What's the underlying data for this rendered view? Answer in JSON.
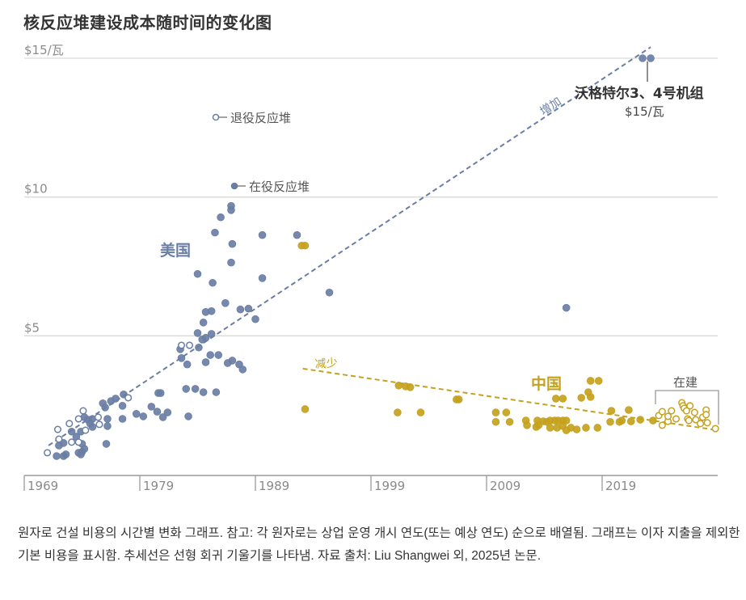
{
  "title": "核反应堆建设成本随时间的变化图",
  "caption": "원자로 건설 비용의 시간별 변화 그래프. 참고: 각 원자로는 상업 운영 개시 연도(또는 예상 연도) 순으로 배열됨. 그래프는 이자 지출을 제외한 기본 비용을 표시함. 추세선은 선형 회귀 기울기를 나타냄. 자료 출처: Liu Shangwei 외, 2025년 논문.",
  "colors": {
    "us": "#6a7ea4",
    "china": "#c4a21e",
    "grid": "#d9d9d9",
    "axis": "#9a9a9a"
  },
  "chart_data": {
    "type": "scatter",
    "xlim": [
      1969,
      2029
    ],
    "ylim": [
      0,
      15
    ],
    "grid": "horizontal",
    "x_ticks": [
      "1969",
      "1979",
      "1989",
      "1999",
      "2009",
      "2019"
    ],
    "y_ticks": [
      {
        "value": 15,
        "label": "$15/瓦"
      },
      {
        "value": 10,
        "label": "$10"
      },
      {
        "value": 5,
        "label": "$5"
      }
    ],
    "legend": {
      "retired": "退役反应堆",
      "operating": "在役反应堆"
    },
    "annotations": {
      "us_label": "美国",
      "china_label": "中国",
      "increase": "增加",
      "decrease": "减少",
      "under_construction": "在建",
      "vogtle_name": "沃格特尔3、4号机组",
      "vogtle_cost": "$15/瓦"
    },
    "series": [
      {
        "name": "美国",
        "status": "operating",
        "color": "#6a7ea4",
        "points": [
          [
            1986.9,
            9.68
          ],
          [
            1986.9,
            9.53
          ],
          [
            1986.0,
            9.27
          ],
          [
            1985.5,
            8.72
          ],
          [
            1989.6,
            8.63
          ],
          [
            1992.6,
            8.63
          ],
          [
            1987.0,
            8.31
          ],
          [
            1986.9,
            7.64
          ],
          [
            1984.0,
            7.23
          ],
          [
            1989.6,
            7.08
          ],
          [
            1985.3,
            6.91
          ],
          [
            1995.4,
            6.56
          ],
          [
            1986.4,
            6.18
          ],
          [
            1987.7,
            5.95
          ],
          [
            1988.4,
            5.98
          ],
          [
            1989.0,
            5.6
          ],
          [
            1984.7,
            5.86
          ],
          [
            1985.2,
            5.89
          ],
          [
            1984.5,
            5.48
          ],
          [
            1984.0,
            5.1
          ],
          [
            1985.2,
            5.07
          ],
          [
            1984.4,
            4.87
          ],
          [
            1984.7,
            4.93
          ],
          [
            1982.5,
            4.52
          ],
          [
            1984.1,
            4.58
          ],
          [
            1985.1,
            4.31
          ],
          [
            1985.8,
            4.31
          ],
          [
            1982.6,
            4.2
          ],
          [
            1983.1,
            3.97
          ],
          [
            1984.7,
            4.05
          ],
          [
            1986.6,
            4.02
          ],
          [
            1987.0,
            4.11
          ],
          [
            1987.6,
            3.97
          ],
          [
            1987.9,
            3.79
          ],
          [
            1983.0,
            3.09
          ],
          [
            1983.8,
            3.09
          ],
          [
            1984.5,
            2.97
          ],
          [
            1985.6,
            2.97
          ],
          [
            1983.2,
            2.1
          ],
          [
            1980.6,
            2.94
          ],
          [
            1980.8,
            2.94
          ],
          [
            1980.0,
            2.45
          ],
          [
            1980.5,
            2.27
          ],
          [
            1981.0,
            2.07
          ],
          [
            1981.4,
            2.24
          ],
          [
            1978.7,
            2.19
          ],
          [
            1979.3,
            2.1
          ],
          [
            1976.9,
            2.74
          ],
          [
            1977.6,
            2.89
          ],
          [
            1977.5,
            2.48
          ],
          [
            1977.5,
            2.01
          ],
          [
            1975.8,
            2.57
          ],
          [
            1976.0,
            2.42
          ],
          [
            1976.5,
            2.65
          ],
          [
            1976.2,
            2.01
          ],
          [
            1976.2,
            1.75
          ],
          [
            1976.1,
            1.11
          ],
          [
            1974.2,
            2.07
          ],
          [
            1974.5,
            1.98
          ],
          [
            1974.9,
            2.01
          ],
          [
            1974.7,
            1.84
          ],
          [
            1974.9,
            1.72
          ],
          [
            1973.1,
            1.55
          ],
          [
            1973.5,
            1.37
          ],
          [
            1973.9,
            1.55
          ],
          [
            1972.0,
            1.05
          ],
          [
            1972.4,
            1.14
          ],
          [
            1974.0,
            1.11
          ],
          [
            1974.2,
            0.93
          ],
          [
            1974.0,
            0.82
          ],
          [
            1971.8,
            0.67
          ],
          [
            1972.4,
            0.67
          ],
          [
            1972.6,
            0.73
          ],
          [
            1973.7,
            0.79
          ],
          [
            1973.9,
            0.73
          ],
          [
            2015.9,
            6.01
          ],
          [
            2022.5,
            15.0
          ],
          [
            2023.2,
            15.0
          ]
        ]
      },
      {
        "name": "美国",
        "status": "retired",
        "color": "#6a7ea4",
        "points": [
          [
            1982.6,
            4.66
          ],
          [
            1983.3,
            4.66
          ],
          [
            1978.0,
            2.77
          ],
          [
            1974.1,
            2.3
          ],
          [
            1973.7,
            2.01
          ],
          [
            1972.9,
            1.84
          ],
          [
            1971.9,
            1.63
          ],
          [
            1972.0,
            1.28
          ],
          [
            1973.1,
            1.17
          ],
          [
            1973.7,
            1.17
          ],
          [
            1975.4,
            2.07
          ],
          [
            1975.5,
            1.81
          ],
          [
            1974.3,
            1.6
          ],
          [
            1971.0,
            0.79
          ]
        ]
      },
      {
        "name": "中国",
        "status": "operating",
        "color": "#c4a21e",
        "points": [
          [
            1993.0,
            8.25
          ],
          [
            1993.3,
            8.25
          ],
          [
            1993.3,
            2.36
          ],
          [
            2001.4,
            3.21
          ],
          [
            2002.0,
            3.18
          ],
          [
            2002.4,
            3.15
          ],
          [
            2001.3,
            2.24
          ],
          [
            2003.3,
            2.24
          ],
          [
            2006.4,
            2.71
          ],
          [
            2006.6,
            2.71
          ],
          [
            2009.8,
            2.24
          ],
          [
            2010.7,
            2.24
          ],
          [
            2009.8,
            1.9
          ],
          [
            2011.0,
            1.9
          ],
          [
            2012.4,
            1.95
          ],
          [
            2012.5,
            1.78
          ],
          [
            2013.4,
            1.95
          ],
          [
            2013.3,
            1.72
          ],
          [
            2013.5,
            1.78
          ],
          [
            2013.9,
            1.92
          ],
          [
            2014.2,
            1.9
          ],
          [
            2014.5,
            1.95
          ],
          [
            2014.9,
            1.95
          ],
          [
            2015.2,
            1.95
          ],
          [
            2015.6,
            1.95
          ],
          [
            2015.9,
            1.95
          ],
          [
            2014.5,
            1.69
          ],
          [
            2015.1,
            1.69
          ],
          [
            2015.6,
            1.75
          ],
          [
            2015.9,
            1.6
          ],
          [
            2016.3,
            1.69
          ],
          [
            2016.8,
            1.63
          ],
          [
            2017.6,
            1.69
          ],
          [
            2018.6,
            1.69
          ],
          [
            2015.0,
            2.74
          ],
          [
            2015.6,
            2.74
          ],
          [
            2017.2,
            2.77
          ],
          [
            2017.8,
            2.97
          ],
          [
            2018.0,
            2.8
          ],
          [
            2018.0,
            3.38
          ],
          [
            2018.7,
            3.38
          ],
          [
            2019.8,
            2.3
          ],
          [
            2021.3,
            2.33
          ],
          [
            2019.7,
            1.9
          ],
          [
            2020.5,
            1.9
          ],
          [
            2020.7,
            1.95
          ],
          [
            2021.5,
            1.92
          ],
          [
            2022.3,
            1.98
          ],
          [
            2023.4,
            1.95
          ]
        ]
      },
      {
        "name": "中国",
        "status": "under_construction",
        "color": "#c4a21e",
        "points": [
          [
            2023.9,
            2.13
          ],
          [
            2024.2,
            1.78
          ],
          [
            2024.2,
            2.27
          ],
          [
            2024.7,
            1.92
          ],
          [
            2024.7,
            2.1
          ],
          [
            2025.0,
            2.3
          ],
          [
            2025.4,
            2.01
          ],
          [
            2025.9,
            2.59
          ],
          [
            2026.0,
            2.48
          ],
          [
            2026.1,
            2.39
          ],
          [
            2026.6,
            2.48
          ],
          [
            2026.3,
            2.3
          ],
          [
            2026.4,
            2.01
          ],
          [
            2026.5,
            1.95
          ],
          [
            2027.0,
            2.24
          ],
          [
            2027.1,
            1.98
          ],
          [
            2027.5,
            1.84
          ],
          [
            2027.7,
            2.07
          ],
          [
            2028.0,
            2.33
          ],
          [
            2028.0,
            2.16
          ],
          [
            2028.1,
            1.87
          ],
          [
            2028.8,
            1.66
          ]
        ]
      }
    ],
    "trendlines": [
      {
        "name": "美国",
        "from": [
          1971.1,
          1.05
        ],
        "to": [
          2023.2,
          15.4
        ]
      },
      {
        "name": "中国",
        "from": [
          1993.1,
          3.82
        ],
        "to": [
          2029.0,
          1.6
        ]
      }
    ]
  }
}
